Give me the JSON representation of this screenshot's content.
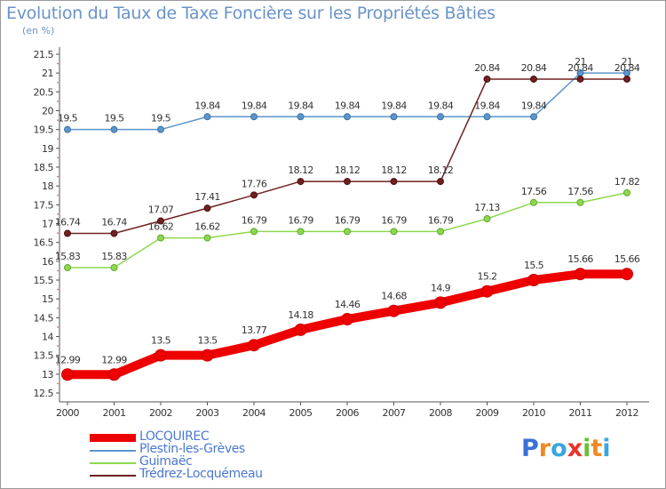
{
  "header": {
    "title": "Evolution du Taux de Taxe Foncière sur les Propriétés Bâties",
    "unit": "(en %)"
  },
  "logo": {
    "text": "Proxiti",
    "letters": [
      {
        "ch": "P",
        "color": "#3a6fd8"
      },
      {
        "ch": "r",
        "color": "#f08a24"
      },
      {
        "ch": "o",
        "color": "#3aa6e0"
      },
      {
        "ch": "x",
        "color": "#e8342a"
      },
      {
        "ch": "i",
        "color": "#6bbf3a"
      },
      {
        "ch": "t",
        "color": "#f08a24"
      },
      {
        "ch": "i",
        "color": "#3aa6e0"
      }
    ]
  },
  "chart_data": {
    "type": "line",
    "title": "Evolution du Taux de Taxe Foncière sur les Propriétés Bâties",
    "ylabel": "(en %)",
    "xlabel": "",
    "ylim": [
      12.5,
      21.5
    ],
    "ytick_step": 0.5,
    "grid": false,
    "legend_position": "bottom-left",
    "x": [
      "2000",
      "2001",
      "2002",
      "2003",
      "2004",
      "2005",
      "2006",
      "2007",
      "2008",
      "2009",
      "2010",
      "2011",
      "2012"
    ],
    "series": [
      {
        "name": "LOCQUIREC",
        "color": "#ee0000",
        "emphasis": true,
        "values": [
          12.99,
          12.99,
          13.5,
          13.5,
          13.77,
          14.18,
          14.46,
          14.68,
          14.9,
          15.2,
          15.5,
          15.66,
          15.66
        ],
        "labels": [
          "12.99",
          "12.99",
          "13.5",
          "13.5",
          "13.77",
          "14.18",
          "14.46",
          "14.68",
          "14.9",
          "15.2",
          "15.5",
          "15.66",
          "15.66"
        ]
      },
      {
        "name": "Plestin-les-Grèves",
        "color": "#5c95cc",
        "emphasis": false,
        "values": [
          19.5,
          19.5,
          19.5,
          19.84,
          19.84,
          19.84,
          19.84,
          19.84,
          19.84,
          19.84,
          19.84,
          21,
          21
        ],
        "labels": [
          "19.5",
          "19.5",
          "19.5",
          "19.84",
          "19.84",
          "19.84",
          "19.84",
          "19.84",
          "19.84",
          "19.84",
          "19.84",
          "21",
          "21"
        ]
      },
      {
        "name": "Guimaëc",
        "color": "#8ed84f",
        "emphasis": false,
        "values": [
          15.83,
          15.83,
          16.62,
          16.62,
          16.79,
          16.79,
          16.79,
          16.79,
          16.79,
          17.13,
          17.56,
          17.56,
          17.82
        ],
        "labels": [
          "15.83",
          "15.83",
          "16.62",
          "16.62",
          "16.79",
          "16.79",
          "16.79",
          "16.79",
          "16.79",
          "17.13",
          "17.56",
          "17.56",
          "17.82"
        ]
      },
      {
        "name": "Trédrez-Locquémeau",
        "color": "#702020",
        "emphasis": false,
        "values": [
          16.74,
          16.74,
          17.07,
          17.41,
          17.76,
          18.12,
          18.12,
          18.12,
          18.12,
          20.84,
          20.84,
          20.84,
          20.84
        ],
        "labels": [
          "16.74",
          "16.74",
          "17.07",
          "17.41",
          "17.76",
          "18.12",
          "18.12",
          "18.12",
          "18.12",
          "20.84",
          "20.84",
          "20.84",
          "20.84"
        ]
      }
    ]
  }
}
